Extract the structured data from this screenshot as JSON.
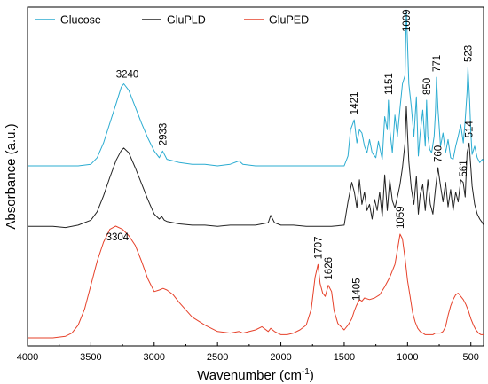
{
  "chart_data": {
    "type": "line",
    "xlabel": "Wavenumber (cm",
    "xlabel_sup": "-1",
    "xlabel_close": ")",
    "ylabel": "Absorbance (a.u.)",
    "xlim": [
      4000,
      400
    ],
    "x_reversed": true,
    "x_ticks": [
      4000,
      3500,
      3000,
      2500,
      2000,
      1500,
      1000,
      500
    ],
    "y_ticks_shown": false,
    "grid": false,
    "legend_position": "top-left",
    "colors": {
      "Glucose": "#2bacd1",
      "GluPLD": "#222222",
      "GluPED": "#e6412a"
    },
    "series": [
      {
        "name": "Glucose",
        "color": "#2bacd1",
        "x": [
          4000,
          3800,
          3600,
          3500,
          3450,
          3400,
          3350,
          3300,
          3260,
          3240,
          3200,
          3150,
          3100,
          3050,
          3000,
          2960,
          2933,
          2900,
          2850,
          2800,
          2700,
          2600,
          2500,
          2400,
          2330,
          2300,
          2200,
          2100,
          2000,
          1900,
          1800,
          1700,
          1600,
          1500,
          1470,
          1450,
          1421,
          1400,
          1380,
          1360,
          1340,
          1320,
          1300,
          1280,
          1250,
          1230,
          1200,
          1180,
          1160,
          1151,
          1140,
          1120,
          1100,
          1080,
          1060,
          1040,
          1020,
          1009,
          1000,
          990,
          970,
          950,
          930,
          915,
          900,
          880,
          860,
          850,
          840,
          825,
          810,
          800,
          790,
          780,
          771,
          760,
          740,
          720,
          700,
          680,
          660,
          640,
          620,
          600,
          580,
          560,
          545,
          530,
          523,
          510,
          500,
          490,
          470,
          450,
          430,
          410,
          400
        ],
        "y": [
          0.0,
          0.0,
          0.0,
          0.01,
          0.05,
          0.14,
          0.26,
          0.38,
          0.48,
          0.5,
          0.46,
          0.36,
          0.26,
          0.17,
          0.09,
          0.05,
          0.09,
          0.04,
          0.03,
          0.02,
          0.01,
          0.01,
          0.0,
          0.01,
          0.03,
          0.01,
          0.0,
          0.0,
          0.0,
          0.0,
          0.0,
          0.0,
          0.0,
          0.0,
          0.06,
          0.22,
          0.28,
          0.14,
          0.22,
          0.2,
          0.12,
          0.08,
          0.16,
          0.08,
          0.05,
          0.15,
          0.04,
          0.3,
          0.22,
          0.4,
          0.22,
          0.08,
          0.31,
          0.18,
          0.35,
          0.5,
          0.55,
          0.95,
          0.75,
          0.5,
          0.36,
          0.18,
          0.42,
          0.06,
          0.2,
          0.34,
          0.12,
          0.4,
          0.18,
          0.1,
          0.08,
          0.13,
          0.18,
          0.32,
          0.54,
          0.35,
          0.12,
          0.2,
          0.08,
          0.16,
          0.05,
          0.04,
          0.12,
          0.18,
          0.25,
          0.14,
          0.28,
          0.45,
          0.6,
          0.4,
          0.2,
          0.07,
          0.12,
          0.05,
          0.02,
          0.04,
          0.03
        ]
      },
      {
        "name": "GluPLD",
        "color": "#222222",
        "x": [
          4000,
          3800,
          3700,
          3600,
          3500,
          3450,
          3400,
          3350,
          3300,
          3260,
          3240,
          3200,
          3150,
          3100,
          3050,
          3000,
          2960,
          2940,
          2920,
          2900,
          2850,
          2800,
          2700,
          2600,
          2500,
          2400,
          2300,
          2200,
          2100,
          2080,
          2050,
          2000,
          1900,
          1800,
          1700,
          1600,
          1500,
          1470,
          1440,
          1420,
          1400,
          1380,
          1360,
          1340,
          1320,
          1300,
          1280,
          1260,
          1240,
          1220,
          1200,
          1180,
          1160,
          1140,
          1120,
          1100,
          1080,
          1060,
          1040,
          1020,
          1009,
          1000,
          990,
          970,
          950,
          930,
          915,
          900,
          880,
          860,
          840,
          820,
          800,
          780,
          760,
          740,
          720,
          700,
          680,
          660,
          640,
          620,
          600,
          580,
          561,
          545,
          530,
          514,
          500,
          490,
          470,
          450,
          430,
          410,
          400
        ],
        "y": [
          0.02,
          0.02,
          0.01,
          0.03,
          0.07,
          0.14,
          0.27,
          0.42,
          0.56,
          0.64,
          0.66,
          0.62,
          0.5,
          0.37,
          0.24,
          0.12,
          0.08,
          0.1,
          0.07,
          0.06,
          0.05,
          0.04,
          0.03,
          0.03,
          0.02,
          0.03,
          0.03,
          0.03,
          0.05,
          0.11,
          0.05,
          0.03,
          0.03,
          0.02,
          0.02,
          0.02,
          0.03,
          0.22,
          0.38,
          0.3,
          0.17,
          0.4,
          0.2,
          0.3,
          0.15,
          0.2,
          0.08,
          0.24,
          0.15,
          0.3,
          0.1,
          0.44,
          0.15,
          0.4,
          0.23,
          0.17,
          0.26,
          0.36,
          0.5,
          0.7,
          1.0,
          0.78,
          0.55,
          0.33,
          0.2,
          0.43,
          0.12,
          0.28,
          0.36,
          0.15,
          0.4,
          0.2,
          0.12,
          0.32,
          0.5,
          0.35,
          0.22,
          0.38,
          0.18,
          0.32,
          0.15,
          0.3,
          0.22,
          0.4,
          0.38,
          0.26,
          0.62,
          0.7,
          0.5,
          0.35,
          0.2,
          0.12,
          0.08,
          0.05,
          0.03
        ]
      },
      {
        "name": "GluPED",
        "color": "#e6412a",
        "x": [
          4000,
          3900,
          3800,
          3700,
          3650,
          3600,
          3550,
          3500,
          3450,
          3400,
          3350,
          3304,
          3250,
          3200,
          3150,
          3100,
          3050,
          3000,
          2960,
          2930,
          2900,
          2850,
          2800,
          2700,
          2600,
          2500,
          2400,
          2330,
          2300,
          2200,
          2150,
          2100,
          2080,
          2050,
          2000,
          1950,
          1900,
          1850,
          1800,
          1760,
          1730,
          1707,
          1690,
          1670,
          1650,
          1626,
          1600,
          1580,
          1550,
          1500,
          1470,
          1440,
          1420,
          1405,
          1380,
          1360,
          1340,
          1300,
          1260,
          1220,
          1180,
          1140,
          1100,
          1080,
          1059,
          1040,
          1020,
          1000,
          980,
          960,
          940,
          920,
          900,
          880,
          860,
          840,
          820,
          800,
          780,
          760,
          740,
          720,
          700,
          680,
          660,
          640,
          620,
          600,
          580,
          560,
          540,
          520,
          500,
          480,
          460,
          440,
          420,
          400
        ],
        "y": [
          0.0,
          0.0,
          0.0,
          0.01,
          0.03,
          0.08,
          0.18,
          0.33,
          0.48,
          0.6,
          0.68,
          0.7,
          0.68,
          0.64,
          0.58,
          0.48,
          0.37,
          0.29,
          0.3,
          0.31,
          0.3,
          0.27,
          0.22,
          0.13,
          0.08,
          0.04,
          0.03,
          0.04,
          0.03,
          0.05,
          0.07,
          0.04,
          0.06,
          0.04,
          0.02,
          0.02,
          0.03,
          0.05,
          0.08,
          0.18,
          0.38,
          0.46,
          0.34,
          0.28,
          0.26,
          0.33,
          0.29,
          0.17,
          0.09,
          0.05,
          0.08,
          0.12,
          0.17,
          0.2,
          0.24,
          0.23,
          0.25,
          0.24,
          0.25,
          0.27,
          0.32,
          0.38,
          0.46,
          0.55,
          0.65,
          0.62,
          0.5,
          0.36,
          0.26,
          0.16,
          0.1,
          0.06,
          0.04,
          0.03,
          0.02,
          0.02,
          0.02,
          0.02,
          0.03,
          0.03,
          0.03,
          0.04,
          0.07,
          0.14,
          0.2,
          0.24,
          0.27,
          0.28,
          0.26,
          0.24,
          0.21,
          0.17,
          0.12,
          0.08,
          0.05,
          0.03,
          0.02,
          0.02
        ]
      }
    ],
    "peak_labels": [
      {
        "series": "Glucose",
        "text": "3240",
        "x": 3240
      },
      {
        "series": "Glucose",
        "text": "2933",
        "x": 2933
      },
      {
        "series": "Glucose",
        "text": "1421",
        "x": 1421
      },
      {
        "series": "Glucose",
        "text": "1151",
        "x": 1151
      },
      {
        "series": "Glucose",
        "text": "1009",
        "x": 1009
      },
      {
        "series": "Glucose",
        "text": "850",
        "x": 850
      },
      {
        "series": "Glucose",
        "text": "771",
        "x": 771
      },
      {
        "series": "Glucose",
        "text": "523",
        "x": 523
      },
      {
        "series": "GluPLD",
        "text": "760",
        "x": 760
      },
      {
        "series": "GluPLD",
        "text": "561",
        "x": 561
      },
      {
        "series": "GluPLD",
        "text": "514",
        "x": 514
      },
      {
        "series": "GluPED",
        "text": "3304",
        "x": 3304
      },
      {
        "series": "GluPED",
        "text": "1707",
        "x": 1707
      },
      {
        "series": "GluPED",
        "text": "1626",
        "x": 1626
      },
      {
        "series": "GluPED",
        "text": "1405",
        "x": 1405
      },
      {
        "series": "GluPED",
        "text": "1059",
        "x": 1059
      }
    ]
  }
}
